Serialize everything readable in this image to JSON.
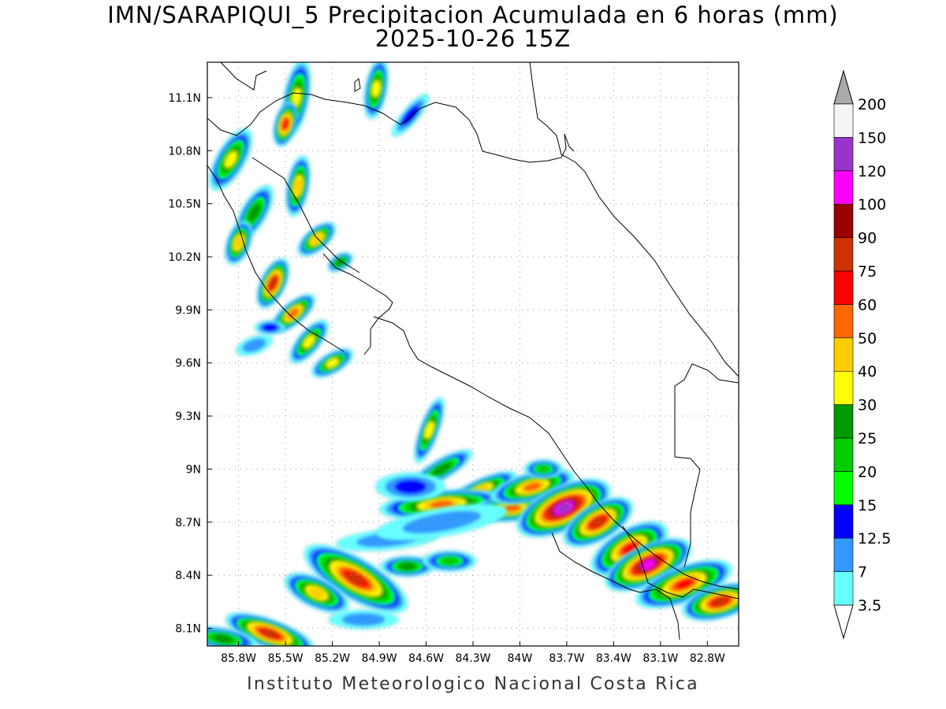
{
  "title": {
    "line1": "IMN/SARAPIQUI_5 Precipitacion Acumulada en 6 horas (mm)",
    "line2": "2025-10-26 15Z"
  },
  "credit": "Instituto Meteorologico Nacional Costa Rica",
  "map": {
    "lon_range": [
      -86.0,
      -82.6
    ],
    "lat_range": [
      8.0,
      11.3
    ],
    "lon_ticks": [
      {
        "value": -85.8,
        "label": "85.8W"
      },
      {
        "value": -85.5,
        "label": "85.5W"
      },
      {
        "value": -85.2,
        "label": "85.2W"
      },
      {
        "value": -84.9,
        "label": "84.9W"
      },
      {
        "value": -84.6,
        "label": "84.6W"
      },
      {
        "value": -84.3,
        "label": "84.3W"
      },
      {
        "value": -84.0,
        "label": "84W"
      },
      {
        "value": -83.7,
        "label": "83.7W"
      },
      {
        "value": -83.4,
        "label": "83.4W"
      },
      {
        "value": -83.1,
        "label": "83.1W"
      },
      {
        "value": -82.8,
        "label": "82.8W"
      }
    ],
    "lat_ticks": [
      {
        "value": 8.1,
        "label": "8.1N"
      },
      {
        "value": 8.4,
        "label": "8.4N"
      },
      {
        "value": 8.7,
        "label": "8.7N"
      },
      {
        "value": 9.0,
        "label": "9N"
      },
      {
        "value": 9.3,
        "label": "9.3N"
      },
      {
        "value": 9.6,
        "label": "9.6N"
      },
      {
        "value": 9.9,
        "label": "9.9N"
      },
      {
        "value": 10.2,
        "label": "10.2N"
      },
      {
        "value": 10.5,
        "label": "10.5N"
      },
      {
        "value": 10.8,
        "label": "10.8N"
      },
      {
        "value": 11.1,
        "label": "11.1N"
      }
    ],
    "grid": true
  },
  "colorbar": {
    "levels": [
      {
        "label": "3.5",
        "color": "#66ffff"
      },
      {
        "label": "7",
        "color": "#3399ff"
      },
      {
        "label": "12.5",
        "color": "#3399ff"
      },
      {
        "label": "15",
        "color": "#0000ff"
      },
      {
        "label": "20",
        "color": "#00ff00"
      },
      {
        "label": "25",
        "color": "#00cc00"
      },
      {
        "label": "30",
        "color": "#009900"
      },
      {
        "label": "40",
        "color": "#ffff00"
      },
      {
        "label": "50",
        "color": "#ffcc00"
      },
      {
        "label": "60",
        "color": "#ff6600"
      },
      {
        "label": "75",
        "color": "#ff0000"
      },
      {
        "label": "90",
        "color": "#cc3300"
      },
      {
        "label": "100",
        "color": "#990000"
      },
      {
        "label": "120",
        "color": "#ff00ff"
      },
      {
        "label": "150",
        "color": "#9933cc"
      },
      {
        "label": "200",
        "color": "#f5f5f5"
      }
    ],
    "bands": [
      "#66ffff",
      "#3399ff",
      "#0000ff",
      "#00ff00",
      "#00cc00",
      "#009900",
      "#ffff00",
      "#ffcc00",
      "#ff6600",
      "#ff0000",
      "#cc3300",
      "#990000",
      "#ff00ff",
      "#9933cc",
      "#f5f5f5"
    ],
    "under_color": "#ffffff",
    "over_color": "#aaaaaa"
  },
  "rain_bands": [
    {
      "lon": -85.5,
      "lat": 10.97,
      "peak_level": 9
    },
    {
      "lon": -85.3,
      "lat": 10.3,
      "peak_level": 7
    },
    {
      "lon": -85.55,
      "lat": 10.05,
      "peak_level": 10
    },
    {
      "lon": -85.45,
      "lat": 9.88,
      "peak_level": 8
    },
    {
      "lon": -84.0,
      "lat": 8.78,
      "peak_level": 8
    },
    {
      "lon": -83.72,
      "lat": 8.78,
      "peak_level": 13
    },
    {
      "lon": -83.2,
      "lat": 8.46,
      "peak_level": 12
    },
    {
      "lon": -82.75,
      "lat": 8.22,
      "peak_level": 10
    },
    {
      "lon": -85.05,
      "lat": 8.38,
      "peak_level": 10
    },
    {
      "lon": -85.6,
      "lat": 8.07,
      "peak_level": 10
    }
  ]
}
